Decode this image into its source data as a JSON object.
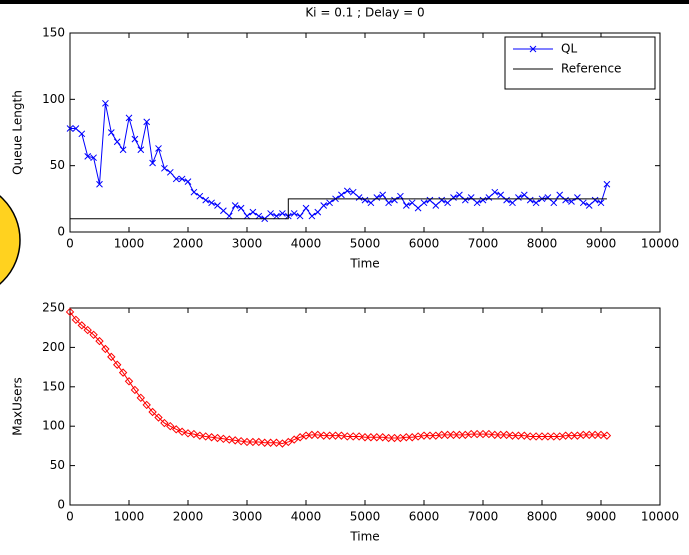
{
  "chart_data": [
    {
      "type": "line",
      "title": "Ki = 0.1 ; Delay = 0",
      "xlabel": "Time",
      "ylabel": "Queue Length",
      "xlim": [
        0,
        10000
      ],
      "ylim": [
        0,
        150
      ],
      "xticks": [
        0,
        1000,
        2000,
        3000,
        4000,
        5000,
        6000,
        7000,
        8000,
        9000,
        10000
      ],
      "yticks": [
        0,
        50,
        100,
        150
      ],
      "legend": "upper-right",
      "x": [
        0,
        100,
        200,
        300,
        400,
        500,
        600,
        700,
        800,
        900,
        1000,
        1100,
        1200,
        1300,
        1400,
        1500,
        1600,
        1700,
        1800,
        1900,
        2000,
        2100,
        2200,
        2300,
        2400,
        2500,
        2600,
        2700,
        2800,
        2900,
        3000,
        3100,
        3200,
        3300,
        3400,
        3500,
        3600,
        3700,
        3800,
        3900,
        4000,
        4100,
        4200,
        4300,
        4400,
        4500,
        4600,
        4700,
        4800,
        4900,
        5000,
        5100,
        5200,
        5300,
        5400,
        5500,
        5600,
        5700,
        5800,
        5900,
        6000,
        6100,
        6200,
        6300,
        6400,
        6500,
        6600,
        6700,
        6800,
        6900,
        7000,
        7100,
        7200,
        7300,
        7400,
        7500,
        7600,
        7700,
        7800,
        7900,
        8000,
        8100,
        8200,
        8300,
        8400,
        8500,
        8600,
        8700,
        8800,
        8900,
        9000,
        9100
      ],
      "series": [
        {
          "name": "QL",
          "color": "#0000ff",
          "marker": "x",
          "values": [
            78,
            78,
            74,
            57,
            56,
            36,
            97,
            75,
            68,
            62,
            86,
            70,
            62,
            83,
            52,
            63,
            48,
            45,
            40,
            40,
            38,
            30,
            27,
            24,
            22,
            20,
            16,
            12,
            20,
            18,
            12,
            15,
            12,
            10,
            14,
            12,
            14,
            12,
            14,
            12,
            18,
            12,
            15,
            20,
            22,
            25,
            28,
            31,
            30,
            26,
            24,
            22,
            26,
            28,
            22,
            24,
            27,
            20,
            22,
            18,
            22,
            24,
            20,
            24,
            22,
            26,
            28,
            24,
            26,
            22,
            24,
            26,
            30,
            28,
            24,
            22,
            26,
            28,
            24,
            22,
            25,
            26,
            22,
            28,
            24,
            23,
            26,
            22,
            20,
            24,
            22,
            36
          ]
        },
        {
          "name": "Reference",
          "color": "#000000",
          "x": [
            0,
            3700,
            3700,
            9100
          ],
          "values": [
            10,
            10,
            25,
            25
          ]
        }
      ]
    },
    {
      "type": "line",
      "xlabel": "Time",
      "ylabel": "MaxUsers",
      "xlim": [
        0,
        10000
      ],
      "ylim": [
        0,
        250
      ],
      "xticks": [
        0,
        1000,
        2000,
        3000,
        4000,
        5000,
        6000,
        7000,
        8000,
        9000,
        10000
      ],
      "yticks": [
        0,
        50,
        100,
        150,
        200,
        250
      ],
      "x": [
        0,
        100,
        200,
        300,
        400,
        500,
        600,
        700,
        800,
        900,
        1000,
        1100,
        1200,
        1300,
        1400,
        1500,
        1600,
        1700,
        1800,
        1900,
        2000,
        2100,
        2200,
        2300,
        2400,
        2500,
        2600,
        2700,
        2800,
        2900,
        3000,
        3100,
        3200,
        3300,
        3400,
        3500,
        3600,
        3700,
        3800,
        3900,
        4000,
        4100,
        4200,
        4300,
        4400,
        4500,
        4600,
        4700,
        4800,
        4900,
        5000,
        5100,
        5200,
        5300,
        5400,
        5500,
        5600,
        5700,
        5800,
        5900,
        6000,
        6100,
        6200,
        6300,
        6400,
        6500,
        6600,
        6700,
        6800,
        6900,
        7000,
        7100,
        7200,
        7300,
        7400,
        7500,
        7600,
        7700,
        7800,
        7900,
        8000,
        8100,
        8200,
        8300,
        8400,
        8500,
        8600,
        8700,
        8800,
        8900,
        9000,
        9100
      ],
      "series": [
        {
          "name": "MaxUsers",
          "color": "#ff0000",
          "marker": "diamond",
          "values": [
            245,
            235,
            228,
            222,
            216,
            208,
            198,
            188,
            178,
            168,
            157,
            146,
            136,
            127,
            118,
            111,
            104,
            100,
            96,
            93,
            91,
            90,
            88,
            87,
            86,
            85,
            84,
            83,
            82,
            81,
            80,
            80,
            80,
            79,
            79,
            79,
            78,
            80,
            83,
            86,
            88,
            89,
            89,
            88,
            88,
            88,
            88,
            87,
            87,
            87,
            86,
            86,
            86,
            86,
            85,
            85,
            85,
            86,
            86,
            87,
            88,
            88,
            88,
            89,
            89,
            89,
            89,
            89,
            90,
            90,
            90,
            90,
            89,
            89,
            89,
            88,
            88,
            88,
            87,
            87,
            87,
            87,
            87,
            87,
            88,
            88,
            88,
            89,
            89,
            89,
            89,
            88
          ]
        }
      ]
    }
  ]
}
